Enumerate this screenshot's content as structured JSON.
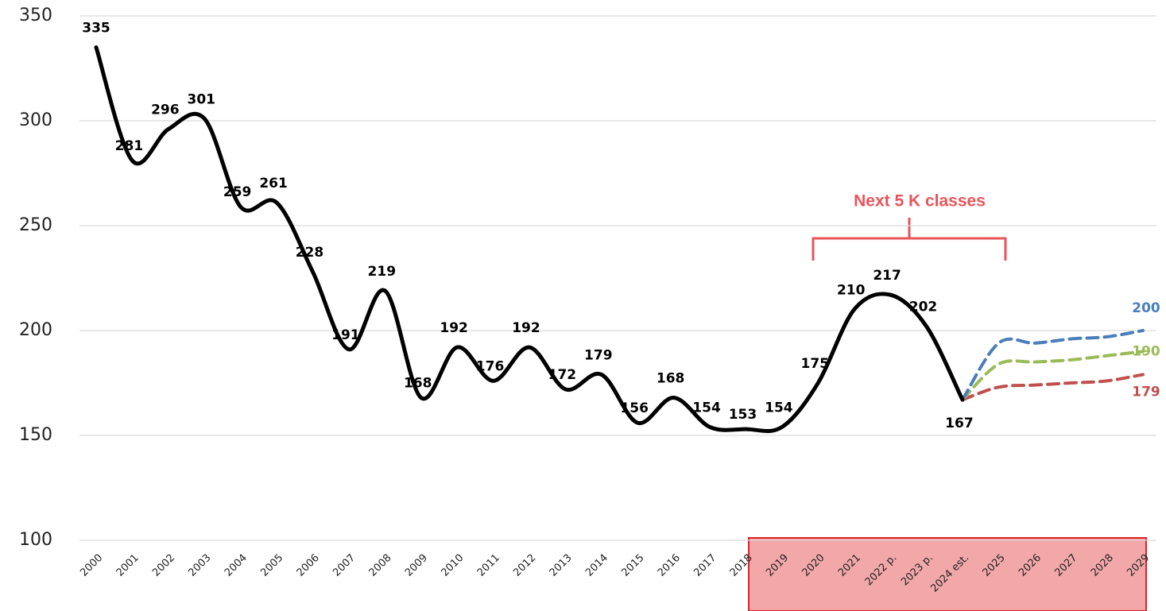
{
  "chart_data": {
    "type": "line",
    "annotation": "Next 5 K classes",
    "categories": [
      "2000",
      "2001",
      "2002",
      "2003",
      "2004",
      "2005",
      "2006",
      "2007",
      "2008",
      "2009",
      "2010",
      "2011",
      "2012",
      "2013",
      "2014",
      "2015",
      "2016",
      "2017",
      "2018",
      "2019",
      "2020",
      "2021",
      "2022 p.",
      "2023 p.",
      "2024 est.",
      "2025",
      "2026",
      "2027",
      "2028",
      "2029"
    ],
    "series": [
      {
        "color": "#000000",
        "dashed": false,
        "values": [
          335,
          281,
          296,
          301,
          259,
          261,
          228,
          191,
          219,
          168,
          192,
          176,
          192,
          172,
          179,
          156,
          168,
          154,
          153,
          154,
          175,
          210,
          217,
          202,
          167,
          null,
          null,
          null,
          null,
          null
        ]
      },
      {
        "color": "#4a7ebb",
        "dashed": true,
        "values": [
          null,
          null,
          null,
          null,
          null,
          null,
          null,
          null,
          null,
          null,
          null,
          null,
          null,
          null,
          null,
          null,
          null,
          null,
          null,
          null,
          null,
          null,
          null,
          null,
          167,
          194,
          194,
          196,
          197,
          200
        ]
      },
      {
        "color": "#9bbb59",
        "dashed": true,
        "values": [
          null,
          null,
          null,
          null,
          null,
          null,
          null,
          null,
          null,
          null,
          null,
          null,
          null,
          null,
          null,
          null,
          null,
          null,
          null,
          null,
          null,
          null,
          null,
          null,
          167,
          184,
          185,
          186,
          188,
          190
        ]
      },
      {
        "color": "#c0504d",
        "dashed": true,
        "values": [
          null,
          null,
          null,
          null,
          null,
          null,
          null,
          null,
          null,
          null,
          null,
          null,
          null,
          null,
          null,
          null,
          null,
          null,
          null,
          null,
          null,
          null,
          null,
          null,
          167,
          173,
          174,
          175,
          176,
          179
        ]
      }
    ],
    "ylim": [
      100,
      350
    ],
    "yticks": [
      100,
      150,
      200,
      250,
      300,
      350
    ],
    "grid": true
  }
}
